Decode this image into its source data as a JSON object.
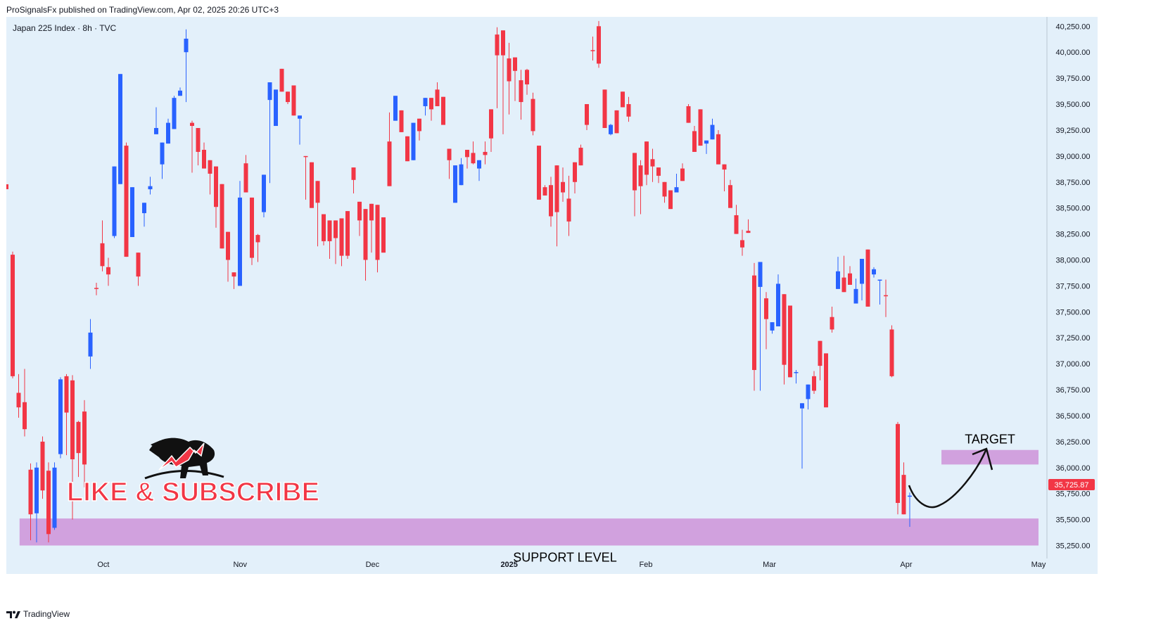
{
  "header": {
    "published": "ProSignalsFx published on TradingView.com, Apr 02, 2025 20:26 UTC+3"
  },
  "footer": {
    "brand": "TradingView"
  },
  "chart_data": {
    "type": "candlestick",
    "symbol": "Japan 225 Index · 8h · TVC",
    "y_axis": {
      "side": "right",
      "range": [
        35125,
        40340
      ],
      "tick_labels": [
        "40,250.00",
        "40,000.00",
        "39,750.00",
        "39,500.00",
        "39,250.00",
        "39,000.00",
        "38,750.00",
        "38,500.00",
        "38,250.00",
        "38,000.00",
        "37,750.00",
        "37,500.00",
        "37,250.00",
        "37,000.00",
        "36,750.00",
        "36,500.00",
        "36,250.00",
        "36,000.00",
        "35,750.00",
        "35,500.00",
        "35,250.00"
      ]
    },
    "x_axis": {
      "tick_labels": [
        "Oct",
        "Nov",
        "Dec",
        "2025",
        "Feb",
        "Mar",
        "Apr",
        "May"
      ]
    },
    "last_price": {
      "label": "35,725.87",
      "value": 35725.87,
      "color": "#f23645"
    },
    "colors": {
      "up": "#2962ff",
      "down": "#f23645",
      "zone": "#ce93d8",
      "background": "#e3f0fa"
    },
    "candles": [
      [
        38050,
        36880,
        38080,
        36860
      ],
      [
        36720,
        36580,
        36900,
        36480
      ],
      [
        36630,
        36370,
        36950,
        36300
      ],
      [
        35980,
        35550,
        36040,
        35300
      ],
      [
        35560,
        36000,
        36050,
        35280
      ],
      [
        36250,
        35780,
        36300,
        35700
      ],
      [
        35970,
        35360,
        36050,
        35280
      ],
      [
        35420,
        36000,
        36050,
        35400
      ],
      [
        36130,
        36850,
        36870,
        36090
      ],
      [
        36880,
        36530,
        36900,
        36120
      ],
      [
        36840,
        36080,
        36890,
        35500
      ],
      [
        36440,
        36140,
        36450,
        35910
      ],
      [
        36540,
        36030,
        36650,
        35810
      ],
      [
        37070,
        37300,
        37430,
        36950
      ],
      [
        37730,
        37720,
        37780,
        37660
      ],
      [
        38160,
        37940,
        38380,
        37890
      ],
      [
        37930,
        37860,
        38020,
        37750
      ],
      [
        38230,
        38900,
        38270,
        38210
      ],
      [
        38730,
        39790,
        38790,
        39020
      ],
      [
        39100,
        38030,
        39130,
        38060
      ],
      [
        38220,
        38700,
        38240,
        38630
      ],
      [
        38070,
        37840,
        37990,
        37750
      ],
      [
        38450,
        38550,
        38490,
        38320
      ],
      [
        38680,
        38710,
        38800,
        38630
      ],
      [
        39210,
        39270,
        39290,
        39470
      ],
      [
        38920,
        39130,
        39080,
        38780
      ],
      [
        39120,
        39320,
        39360,
        39170
      ],
      [
        39260,
        39560,
        39340,
        39580
      ],
      [
        39580,
        39630,
        39640,
        39660
      ],
      [
        40000,
        40130,
        40220,
        39520
      ],
      [
        39320,
        39290,
        39340,
        38840
      ],
      [
        39270,
        39040,
        39260,
        38910
      ],
      [
        39060,
        38880,
        39130,
        38890
      ],
      [
        38960,
        38830,
        38810,
        38630
      ],
      [
        38900,
        38510,
        38770,
        38310
      ],
      [
        38730,
        38110,
        38430,
        38600
      ],
      [
        38270,
        38000,
        38120,
        37790
      ],
      [
        37880,
        37840,
        37720,
        37750
      ],
      [
        37750,
        38600,
        38570,
        38760
      ],
      [
        38930,
        38650,
        38790,
        39010
      ],
      [
        38600,
        38020,
        38590,
        37950
      ],
      [
        38240,
        38170,
        38250,
        37980
      ],
      [
        38460,
        38820,
        38410,
        38500
      ],
      [
        39540,
        39710,
        39590,
        38740
      ],
      [
        39290,
        39640,
        39530,
        39570
      ],
      [
        39840,
        39620,
        39760,
        39790
      ],
      [
        39620,
        39520,
        39580,
        39500
      ],
      [
        39680,
        39390,
        39460,
        39430
      ],
      [
        39360,
        39390,
        39240,
        39110
      ],
      [
        39000,
        38990,
        38580,
        38810
      ],
      [
        38940,
        38500,
        38760,
        38550
      ],
      [
        38760,
        38550,
        38640,
        38130
      ],
      [
        38440,
        38180,
        38140,
        38300
      ],
      [
        38380,
        38180,
        38010,
        38370
      ],
      [
        38380,
        38210,
        37960,
        38140
      ],
      [
        38400,
        38040,
        37940,
        38330
      ],
      [
        38470,
        38040,
        38010,
        38380
      ],
      [
        38890,
        38770,
        38700,
        38640
      ],
      [
        38560,
        38380,
        38410,
        38230
      ],
      [
        38490,
        38000,
        38480,
        37800
      ],
      [
        38540,
        38380,
        38370,
        38070
      ],
      [
        38530,
        38000,
        38050,
        37880
      ],
      [
        38410,
        38070,
        38160,
        38230
      ],
      [
        39140,
        38710,
        39130,
        39420
      ],
      [
        39340,
        39580,
        39530,
        39560
      ],
      [
        39440,
        39230,
        39390,
        39400
      ],
      [
        39190,
        38950,
        38950,
        38960
      ],
      [
        38960,
        39320,
        39310,
        39180
      ],
      [
        39360,
        39240,
        39300,
        39150
      ],
      [
        39480,
        39560,
        39520,
        39390
      ],
      [
        39560,
        39450,
        39340,
        39360
      ],
      [
        39640,
        39480,
        39710,
        39520
      ],
      [
        39570,
        39300,
        39380,
        39470
      ],
      [
        39070,
        38960,
        38980,
        38780
      ],
      [
        38550,
        38910,
        38550,
        38750
      ],
      [
        38720,
        38920,
        38780,
        38980
      ],
      [
        39060,
        38990,
        39030,
        38880
      ],
      [
        39030,
        38930,
        39140,
        38920
      ],
      [
        38880,
        38960,
        38760,
        38800
      ],
      [
        39040,
        39010,
        39140,
        38920
      ],
      [
        39450,
        39170,
        39340,
        39040
      ],
      [
        40170,
        39970,
        40240,
        39460
      ],
      [
        40210,
        39970,
        40190,
        39210
      ],
      [
        39940,
        39720,
        40090,
        39400
      ],
      [
        39950,
        39820,
        39780,
        39530
      ],
      [
        39730,
        39520,
        39830,
        39350
      ],
      [
        39830,
        39690,
        39840,
        39590
      ],
      [
        39550,
        39240,
        39610,
        39200
      ],
      [
        39100,
        38580,
        39010,
        38640
      ],
      [
        38700,
        38620,
        38680,
        38720
      ],
      [
        38720,
        38420,
        38800,
        38320
      ],
      [
        38910,
        38460,
        38790,
        38130
      ],
      [
        38750,
        38650,
        38890,
        38560
      ],
      [
        38590,
        38370,
        38810,
        38230
      ],
      [
        38940,
        38750,
        38770,
        38640
      ],
      [
        39080,
        38910,
        39020,
        39110
      ],
      [
        39500,
        39300,
        39460,
        39250
      ],
      [
        40020,
        40010,
        40150,
        39920
      ],
      [
        40250,
        39890,
        40300,
        39850
      ],
      [
        39640,
        39270,
        39460,
        39300
      ],
      [
        39210,
        39300,
        39200,
        39310
      ],
      [
        39440,
        39220,
        39360,
        39300
      ],
      [
        39620,
        39470,
        39570,
        39500
      ],
      [
        39500,
        39380,
        39570,
        39330
      ],
      [
        39030,
        38670,
        38930,
        38420
      ],
      [
        38910,
        38710,
        38960,
        38440
      ],
      [
        39140,
        38820,
        38990,
        38720
      ],
      [
        38970,
        38900,
        39070,
        38750
      ],
      [
        38890,
        38810,
        38880,
        38740
      ],
      [
        38750,
        38610,
        38750,
        38550
      ],
      [
        38670,
        38490,
        38580,
        38670
      ],
      [
        38650,
        38700,
        38830,
        38670
      ],
      [
        38880,
        38760,
        38850,
        38930
      ],
      [
        39480,
        39320,
        39500,
        39400
      ],
      [
        39240,
        39040,
        39290,
        39090
      ],
      [
        39450,
        39100,
        39320,
        39250
      ],
      [
        39120,
        39150,
        39110,
        39020
      ],
      [
        39160,
        39300,
        39360,
        39250
      ],
      [
        39210,
        38920,
        39250,
        38970
      ],
      [
        38920,
        38870,
        38910,
        38660
      ],
      [
        38720,
        38500,
        38770,
        38670
      ],
      [
        38430,
        38250,
        38530,
        38390
      ],
      [
        38190,
        38120,
        38290,
        38040
      ],
      [
        38280,
        38260,
        38390,
        38290
      ],
      [
        37850,
        36940,
        37970,
        36740
      ],
      [
        37740,
        37980,
        37890,
        36740
      ],
      [
        37630,
        37430,
        37690,
        37140
      ],
      [
        37320,
        37400,
        37290,
        37390
      ],
      [
        37360,
        37770,
        37860,
        37580
      ],
      [
        37670,
        36990,
        37660,
        36800
      ],
      [
        37560,
        36870,
        36940,
        36970
      ],
      [
        36920,
        36920,
        36940,
        36810
      ],
      [
        36570,
        36620,
        36610,
        35990
      ],
      [
        36660,
        36800,
        36800,
        36560
      ],
      [
        36880,
        36740,
        36930,
        36710
      ],
      [
        37220,
        36980,
        37220,
        36840
      ],
      [
        37100,
        36580,
        37100,
        36630
      ],
      [
        37450,
        37330,
        37550,
        37300
      ],
      [
        37720,
        37890,
        38030,
        37730
      ],
      [
        37830,
        37690,
        38040,
        37720
      ],
      [
        37870,
        37760,
        37940,
        37760
      ],
      [
        37580,
        37720,
        37630,
        37820
      ],
      [
        37770,
        38010,
        37830,
        37610
      ],
      [
        38100,
        37550,
        38050,
        37740
      ],
      [
        37860,
        37910,
        37930,
        37830
      ],
      [
        37800,
        37810,
        37760,
        37570
      ],
      [
        37660,
        37650,
        37810,
        37450
      ],
      [
        37330,
        36880,
        37370,
        36870
      ],
      [
        36420,
        35660,
        36440,
        35550
      ],
      [
        35930,
        35550,
        36050,
        35550
      ],
      [
        35720,
        35730,
        35760,
        35430
      ]
    ],
    "zones": [
      {
        "name": "support",
        "label": "SUPPORT LEVEL",
        "top": 35510,
        "bottom": 35250,
        "x_start": "2024-09-12",
        "x_end": "2025-05-01"
      },
      {
        "name": "target",
        "label": "TARGET",
        "top": 36170,
        "bottom": 36030,
        "x_start": "2025-04-09",
        "x_end": "2025-05-01"
      }
    ],
    "watermark": {
      "text": "LIKE & SUBSCRIBE"
    }
  }
}
